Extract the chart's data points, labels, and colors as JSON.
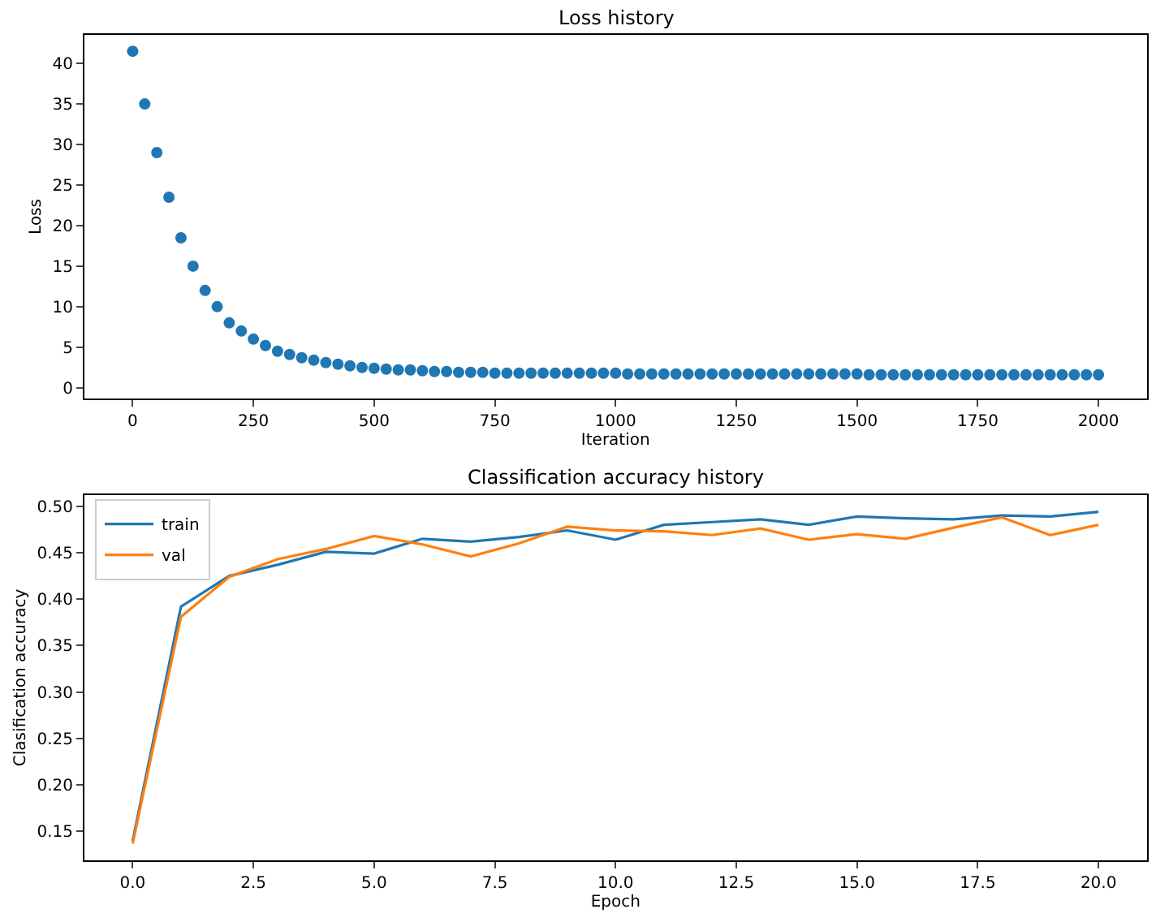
{
  "chart_data": [
    {
      "type": "scatter",
      "title": "Loss history",
      "xlabel": "Iteration",
      "ylabel": "Loss",
      "marker": "circle",
      "legend": false,
      "xlim": [
        -100,
        2100
      ],
      "xticks": [
        0,
        250,
        500,
        750,
        1000,
        1250,
        1500,
        1750,
        2000
      ],
      "ylim": [
        -1.3,
        43.5
      ],
      "yticks": [
        0,
        5,
        10,
        15,
        20,
        25,
        30,
        35,
        40
      ],
      "x": [
        0,
        25,
        50,
        75,
        100,
        125,
        150,
        175,
        200,
        225,
        250,
        275,
        300,
        325,
        350,
        375,
        400,
        425,
        450,
        475,
        500,
        525,
        550,
        575,
        600,
        625,
        650,
        675,
        700,
        725,
        750,
        775,
        800,
        825,
        850,
        875,
        900,
        925,
        950,
        975,
        1000,
        1025,
        1050,
        1075,
        1100,
        1125,
        1150,
        1175,
        1200,
        1225,
        1250,
        1275,
        1300,
        1325,
        1350,
        1375,
        1400,
        1425,
        1450,
        1475,
        1500,
        1525,
        1550,
        1575,
        1600,
        1625,
        1650,
        1675,
        1700,
        1725,
        1750,
        1775,
        1800,
        1825,
        1850,
        1875,
        1900,
        1925,
        1950,
        1975,
        2000
      ],
      "series": [
        {
          "color": "#1f77b4",
          "values": [
            41.5,
            35,
            29,
            23.5,
            18.5,
            15,
            12,
            10,
            8,
            7,
            6,
            5.2,
            4.5,
            4.1,
            3.7,
            3.4,
            3.1,
            2.9,
            2.7,
            2.5,
            2.4,
            2.3,
            2.2,
            2.2,
            2.1,
            2.0,
            2.0,
            1.9,
            1.9,
            1.9,
            1.8,
            1.8,
            1.8,
            1.8,
            1.8,
            1.8,
            1.8,
            1.8,
            1.8,
            1.8,
            1.8,
            1.7,
            1.7,
            1.7,
            1.7,
            1.7,
            1.7,
            1.7,
            1.7,
            1.7,
            1.7,
            1.7,
            1.7,
            1.7,
            1.7,
            1.7,
            1.7,
            1.7,
            1.7,
            1.7,
            1.7,
            1.6,
            1.6,
            1.6,
            1.6,
            1.6,
            1.6,
            1.6,
            1.6,
            1.6,
            1.6,
            1.6,
            1.6,
            1.6,
            1.6,
            1.6,
            1.6,
            1.6,
            1.6,
            1.6,
            1.6
          ]
        }
      ]
    },
    {
      "type": "line",
      "title": "Classification accuracy history",
      "xlabel": "Epoch",
      "ylabel": "Clasification accuracy",
      "legend": "top left",
      "marker": "none",
      "line_style": "solid",
      "xlim": [
        -1,
        21
      ],
      "xticks": [
        {
          "value": 0,
          "label": "0.0"
        },
        {
          "value": 2.5,
          "label": "2.5"
        },
        {
          "value": 5,
          "label": "5.0"
        },
        {
          "value": 7.5,
          "label": "7.5"
        },
        {
          "value": 10,
          "label": "10.0"
        },
        {
          "value": 12.5,
          "label": "12.5"
        },
        {
          "value": 15,
          "label": "15.0"
        },
        {
          "value": 17.5,
          "label": "17.5"
        },
        {
          "value": 20,
          "label": "20.0"
        }
      ],
      "ylim": [
        0.119,
        0.512
      ],
      "yticks": [
        {
          "value": 0.15,
          "label": "0.15"
        },
        {
          "value": 0.2,
          "label": "0.20"
        },
        {
          "value": 0.25,
          "label": "0.25"
        },
        {
          "value": 0.3,
          "label": "0.30"
        },
        {
          "value": 0.35,
          "label": "0.35"
        },
        {
          "value": 0.4,
          "label": "0.40"
        },
        {
          "value": 0.45,
          "label": "0.45"
        },
        {
          "value": 0.5,
          "label": "0.50"
        }
      ],
      "x": [
        0,
        1,
        2,
        3,
        4,
        5,
        6,
        7,
        8,
        9,
        10,
        11,
        12,
        13,
        14,
        15,
        16,
        17,
        18,
        19,
        20
      ],
      "series": [
        {
          "name": "train",
          "color": "#1f77b4",
          "values": [
            0.14,
            0.392,
            0.425,
            0.437,
            0.451,
            0.449,
            0.465,
            0.462,
            0.467,
            0.474,
            0.464,
            0.48,
            0.483,
            0.486,
            0.48,
            0.489,
            0.487,
            0.486,
            0.49,
            0.489,
            0.494
          ]
        },
        {
          "name": "val",
          "color": "#ff7f0e",
          "values": [
            0.137,
            0.381,
            0.424,
            0.443,
            0.454,
            0.468,
            0.459,
            0.446,
            0.46,
            0.478,
            0.474,
            0.473,
            0.469,
            0.476,
            0.464,
            0.47,
            0.465,
            0.477,
            0.488,
            0.469,
            0.48
          ]
        }
      ]
    }
  ]
}
